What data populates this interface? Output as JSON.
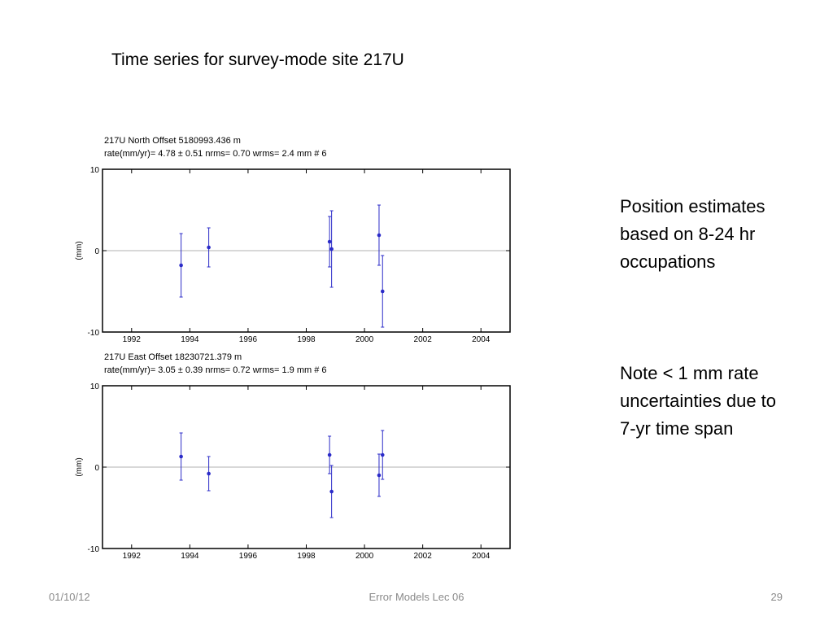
{
  "slide": {
    "title": "Time series for survey-mode site 217U",
    "note1": "Position estimates based on 8-24 hr occupations",
    "note2": "Note < 1 mm rate uncertainties due to 7-yr time span",
    "footer_date": "01/10/12",
    "footer_center": "Error Models Lec 06",
    "footer_page": "29"
  },
  "colors": {
    "series": "#2b2bc8",
    "zero_line": "#b0b0b0",
    "frame": "#000000"
  },
  "chart_data": [
    {
      "type": "scatter",
      "title_line1": "217U  North Offset   5180993.436 m",
      "title_line2": "rate(mm/yr)=    4.78 ±  0.51   nrms=  0.70  wrms=   2.4 mm # 6",
      "ylabel": "(mm)",
      "xlim": [
        1991.0,
        2005.0
      ],
      "ylim": [
        -10,
        10
      ],
      "xticks": [
        1992,
        1994,
        1996,
        1998,
        2000,
        2002,
        2004
      ],
      "yticks": [
        -10,
        0,
        10
      ],
      "zero_line": true,
      "error_bars": true,
      "points": [
        {
          "x": 1993.7,
          "y": -1.8,
          "err": 3.9
        },
        {
          "x": 1994.65,
          "y": 0.4,
          "err": 2.4
        },
        {
          "x": 1998.8,
          "y": 1.1,
          "err": 3.1
        },
        {
          "x": 1998.87,
          "y": 0.2,
          "err": 4.7
        },
        {
          "x": 2000.5,
          "y": 1.9,
          "err": 3.7
        },
        {
          "x": 2000.62,
          "y": -5.0,
          "err": 4.4
        }
      ]
    },
    {
      "type": "scatter",
      "title_line1": "217U  East Offset  18230721.379 m",
      "title_line2": "rate(mm/yr)=    3.05 ±  0.39   nrms=  0.72  wrms=   1.9 mm # 6",
      "ylabel": "(mm)",
      "xlim": [
        1991.0,
        2005.0
      ],
      "ylim": [
        -10,
        10
      ],
      "xticks": [
        1992,
        1994,
        1996,
        1998,
        2000,
        2002,
        2004
      ],
      "yticks": [
        -10,
        0,
        10
      ],
      "zero_line": true,
      "error_bars": true,
      "points": [
        {
          "x": 1993.7,
          "y": 1.3,
          "err": 2.9
        },
        {
          "x": 1994.65,
          "y": -0.8,
          "err": 2.1
        },
        {
          "x": 1998.8,
          "y": 1.5,
          "err": 2.3
        },
        {
          "x": 1998.87,
          "y": -3.0,
          "err": 3.2
        },
        {
          "x": 2000.5,
          "y": -1.0,
          "err": 2.6
        },
        {
          "x": 2000.62,
          "y": 1.5,
          "err": 3.0
        }
      ]
    }
  ]
}
